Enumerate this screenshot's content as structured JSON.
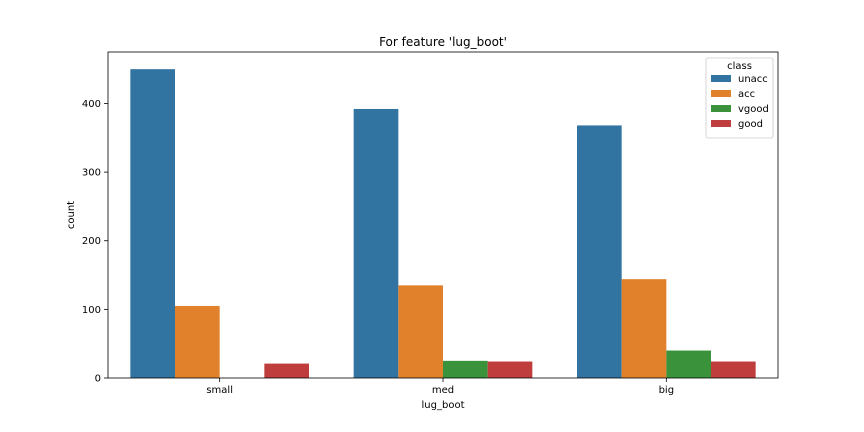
{
  "chart_data": {
    "type": "bar",
    "title": "For feature 'lug_boot'",
    "xlabel": "lug_boot",
    "ylabel": "count",
    "categories": [
      "small",
      "med",
      "big"
    ],
    "series": [
      {
        "name": "unacc",
        "color": "#3274a1",
        "values": [
          450,
          392,
          368
        ]
      },
      {
        "name": "acc",
        "color": "#e1812c",
        "values": [
          105,
          135,
          144
        ]
      },
      {
        "name": "vgood",
        "color": "#3a923a",
        "values": [
          0,
          25,
          40
        ]
      },
      {
        "name": "good",
        "color": "#c03d3e",
        "values": [
          21,
          24,
          24
        ]
      }
    ],
    "ylim": [
      0,
      475
    ],
    "yticks": [
      0,
      100,
      200,
      300,
      400
    ],
    "legend": {
      "title": "class",
      "placement": "top-right"
    },
    "grid": false
  }
}
